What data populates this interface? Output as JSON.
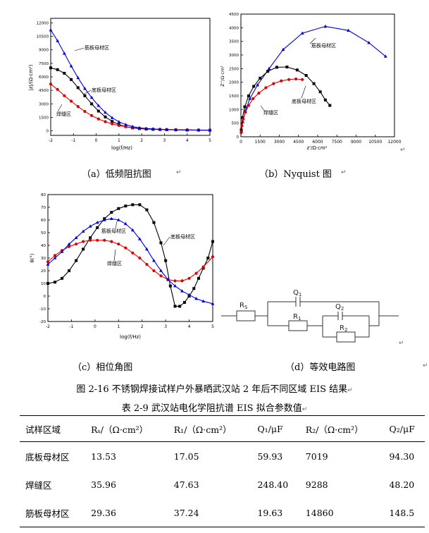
{
  "return_mark": "↵",
  "figure": {
    "title": "图 2-16  不锈钢焊接试样户外暴晒武汉站 2 年后不同区域 EIS 结果",
    "captions": {
      "a": "（a）低频阻抗图",
      "b": "（b）Nyquist 图",
      "c": "（c）相位角图",
      "d": "（d）等效电路图"
    }
  },
  "colors": {
    "base_metal": "#000000",
    "weld": "#e00000",
    "rebar": "#0000dd"
  },
  "chart_data": [
    {
      "id": "a",
      "type": "line",
      "title": "",
      "xlabel": "log(f/Hz)",
      "ylabel": "|z|/(Ω·cm²)",
      "xlim": [
        -2,
        5
      ],
      "ylim": [
        -500,
        12500
      ],
      "xticks": [
        "-2",
        "-1",
        "0",
        "1",
        "2",
        "3",
        "4",
        "5"
      ],
      "yticks": [
        "0",
        "1500",
        "3000",
        "4500",
        "6000",
        "7500",
        "9000",
        "10500",
        "12000"
      ],
      "annotations": [
        "筋板母材区",
        "底板母材区",
        "焊缝区"
      ],
      "series": [
        {
          "name": "底板母材区",
          "color": "#000000",
          "marker": "square",
          "x": [
            -2,
            -1.7,
            -1.4,
            -1.1,
            -0.8,
            -0.5,
            -0.2,
            0.1,
            0.4,
            0.7,
            1.0,
            1.3,
            1.6,
            1.9,
            2.2,
            2.5,
            2.8,
            3.1,
            3.5,
            4,
            4.5,
            5
          ],
          "y": [
            7000,
            6800,
            6400,
            5700,
            4800,
            3900,
            3000,
            2200,
            1550,
            1050,
            700,
            470,
            330,
            250,
            200,
            170,
            150,
            130,
            110,
            90,
            80,
            70
          ]
        },
        {
          "name": "焊缝区",
          "color": "#e00000",
          "marker": "circle",
          "x": [
            -2,
            -1.7,
            -1.4,
            -1.1,
            -0.8,
            -0.5,
            -0.2,
            0.1,
            0.4,
            0.7,
            1.0,
            1.3,
            1.6,
            1.9,
            2.2,
            2.5,
            2.8,
            3.1,
            3.5,
            4,
            4.5,
            5
          ],
          "y": [
            5200,
            4600,
            3900,
            3300,
            2700,
            2150,
            1700,
            1320,
            1020,
            780,
            600,
            460,
            360,
            290,
            240,
            200,
            170,
            150,
            130,
            110,
            95,
            80
          ]
        },
        {
          "name": "筋板母材区",
          "color": "#0000dd",
          "marker": "triangle",
          "x": [
            -2,
            -1.7,
            -1.4,
            -1.1,
            -0.8,
            -0.5,
            -0.2,
            0.1,
            0.4,
            0.7,
            1.0,
            1.3,
            1.6,
            1.9,
            2.2,
            2.5,
            2.8,
            3.1,
            3.5,
            4,
            4.5,
            5
          ],
          "y": [
            11200,
            10000,
            8600,
            7200,
            5900,
            4700,
            3700,
            2800,
            2050,
            1450,
            1000,
            700,
            480,
            340,
            260,
            210,
            175,
            150,
            125,
            100,
            85,
            75
          ]
        }
      ]
    },
    {
      "id": "b",
      "type": "line",
      "title": "",
      "xlabel": "z'/Ω·cm²",
      "ylabel": "Z''/Ω·cm²",
      "xlim": [
        0,
        12000
      ],
      "ylim": [
        0,
        4500
      ],
      "xticks": [
        "0",
        "1500",
        "3000",
        "4500",
        "6000",
        "7500",
        "9000",
        "10500",
        "12000"
      ],
      "yticks": [
        "0",
        "500",
        "1000",
        "1500",
        "2000",
        "2500",
        "3000",
        "3500",
        "4000",
        "4500"
      ],
      "annotations": [
        "筋板母材区",
        "焊缝区",
        "底板母材区"
      ],
      "series": [
        {
          "name": "筋板母材区",
          "color": "#0000dd",
          "marker": "triangle",
          "x": [
            40,
            150,
            350,
            700,
            1300,
            2200,
            3300,
            4800,
            6600,
            8400,
            10000,
            11300
          ],
          "y": [
            200,
            550,
            950,
            1400,
            1900,
            2500,
            3200,
            3800,
            4050,
            3900,
            3450,
            2950
          ]
        },
        {
          "name": "底板母材区",
          "color": "#000000",
          "marker": "square",
          "x": [
            30,
            120,
            300,
            600,
            1000,
            1500,
            2100,
            2800,
            3600,
            4400,
            5100,
            5700,
            6200,
            6600,
            6950
          ],
          "y": [
            250,
            700,
            1100,
            1500,
            1850,
            2150,
            2400,
            2550,
            2560,
            2450,
            2250,
            1950,
            1650,
            1350,
            1150
          ]
        },
        {
          "name": "焊缝区",
          "color": "#e00000",
          "marker": "circle",
          "x": [
            20,
            80,
            180,
            350,
            600,
            950,
            1400,
            1950,
            2550,
            3150,
            3750,
            4300,
            4800
          ],
          "y": [
            150,
            400,
            650,
            900,
            1150,
            1400,
            1600,
            1800,
            1950,
            2050,
            2100,
            2120,
            2100
          ]
        }
      ]
    },
    {
      "id": "c",
      "type": "line",
      "title": "",
      "xlabel": "log(f/Hz)",
      "ylabel": "θ(°)",
      "xlim": [
        -2,
        5
      ],
      "ylim": [
        -20,
        80
      ],
      "xticks": [
        "-2",
        "-1",
        "0",
        "1",
        "2",
        "3",
        "4",
        "5"
      ],
      "yticks": [
        "-20",
        "-10",
        "0",
        "10",
        "20",
        "30",
        "40",
        "50",
        "60",
        "70",
        "80"
      ],
      "annotations": [
        "底板母材区",
        "筋板母材区",
        "焊缝区"
      ],
      "series": [
        {
          "name": "底板母材区",
          "color": "#000000",
          "marker": "square",
          "x": [
            -2,
            -1.7,
            -1.4,
            -1.1,
            -0.8,
            -0.5,
            -0.2,
            0.1,
            0.4,
            0.7,
            1.0,
            1.3,
            1.6,
            1.9,
            2.2,
            2.5,
            2.8,
            3.0,
            3.2,
            3.4,
            3.6,
            3.8,
            4.0,
            4.2,
            4.4,
            4.6,
            4.8,
            5.0
          ],
          "y": [
            10,
            11,
            14,
            20,
            28,
            37,
            46,
            54,
            61,
            66,
            69,
            71,
            72,
            72,
            68,
            58,
            42,
            28,
            8,
            -8,
            -8,
            -5,
            0,
            6,
            14,
            22,
            30,
            43
          ]
        },
        {
          "name": "焊缝区",
          "color": "#e00000",
          "marker": "circle",
          "x": [
            -2,
            -1.7,
            -1.4,
            -1.1,
            -0.8,
            -0.5,
            -0.2,
            0.1,
            0.4,
            0.7,
            1.0,
            1.3,
            1.6,
            1.9,
            2.2,
            2.5,
            2.8,
            3.1,
            3.4,
            3.7,
            4.0,
            4.3,
            4.6,
            5.0
          ],
          "y": [
            27,
            32,
            36,
            39,
            41,
            43,
            44,
            44,
            44,
            43,
            41,
            38,
            34,
            30,
            25,
            20,
            16,
            13,
            12,
            12,
            14,
            18,
            23,
            31
          ]
        },
        {
          "name": "筋板母材区",
          "color": "#0000dd",
          "marker": "triangle",
          "x": [
            -2,
            -1.7,
            -1.4,
            -1.1,
            -0.8,
            -0.5,
            -0.2,
            0.1,
            0.4,
            0.7,
            1.0,
            1.3,
            1.6,
            1.9,
            2.2,
            2.5,
            2.8,
            3.1,
            3.4,
            3.7,
            4.0,
            4.3,
            4.6,
            5.0
          ],
          "y": [
            25,
            30,
            35,
            41,
            46,
            51,
            55,
            58,
            60,
            61,
            60,
            57,
            52,
            45,
            37,
            28,
            20,
            13,
            8,
            4,
            1,
            -2,
            -4,
            -6
          ]
        }
      ]
    }
  ],
  "circuit": {
    "labels": {
      "rs": "R",
      "rs_sub": "S",
      "q1": "Q",
      "q1_sub": "1",
      "r1": "R",
      "r1_sub": "1",
      "q2": "Q",
      "q2_sub": "2",
      "r2": "R",
      "r2_sub": "2"
    }
  },
  "table": {
    "title": "表 2-9  武汉站电化学阻抗谱 EIS 拟合参数值",
    "headers": [
      "试样区域",
      "Rₛ/（Ω·cm²）",
      "R₁/（Ω·cm²）",
      "Q₁/μF",
      "R₂/（Ω·cm²）",
      "Q₂/μF"
    ],
    "rows": [
      [
        "底板母材区",
        "13.53",
        "17.05",
        "59.93",
        "7019",
        "94.30"
      ],
      [
        "焊缝区",
        "35.96",
        "47.63",
        "248.40",
        "9288",
        "48.20"
      ],
      [
        "筋板母材区",
        "29.36",
        "37.24",
        "19.63",
        "14860",
        "148.5"
      ]
    ]
  }
}
